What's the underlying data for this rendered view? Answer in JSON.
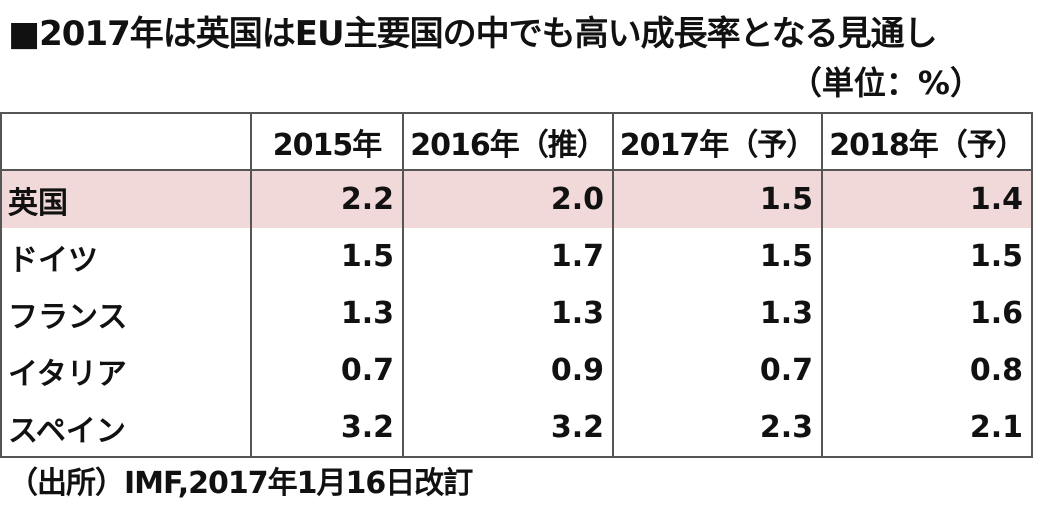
{
  "title": "■2017年は英国はEU主要国の中でも高い成長率となる見通し",
  "unit": "（単位：%）",
  "source": "（出所）IMF,2017年1月16日改訂",
  "highlight_color": "#f2d9d9",
  "chart_data": {
    "type": "table",
    "title": "■2017年は英国はEU主要国の中でも高い成長率となる見通し",
    "unit": "（単位：%）",
    "columns": [
      "",
      "2015年",
      "2016年（推）",
      "2017年（予）",
      "2018年（予）"
    ],
    "rows": [
      {
        "country": "英国",
        "values": [
          "2.2",
          "2.0",
          "1.5",
          "1.4"
        ],
        "highlight": true
      },
      {
        "country": "ドイツ",
        "values": [
          "1.5",
          "1.7",
          "1.5",
          "1.5"
        ],
        "highlight": false
      },
      {
        "country": "フランス",
        "values": [
          "1.3",
          "1.3",
          "1.3",
          "1.6"
        ],
        "highlight": false
      },
      {
        "country": "イタリア",
        "values": [
          "0.7",
          "0.9",
          "0.7",
          "0.8"
        ],
        "highlight": false
      },
      {
        "country": "スペイン",
        "values": [
          "3.2",
          "3.2",
          "2.3",
          "2.1"
        ],
        "highlight": false
      }
    ],
    "source": "（出所）IMF,2017年1月16日改訂"
  }
}
